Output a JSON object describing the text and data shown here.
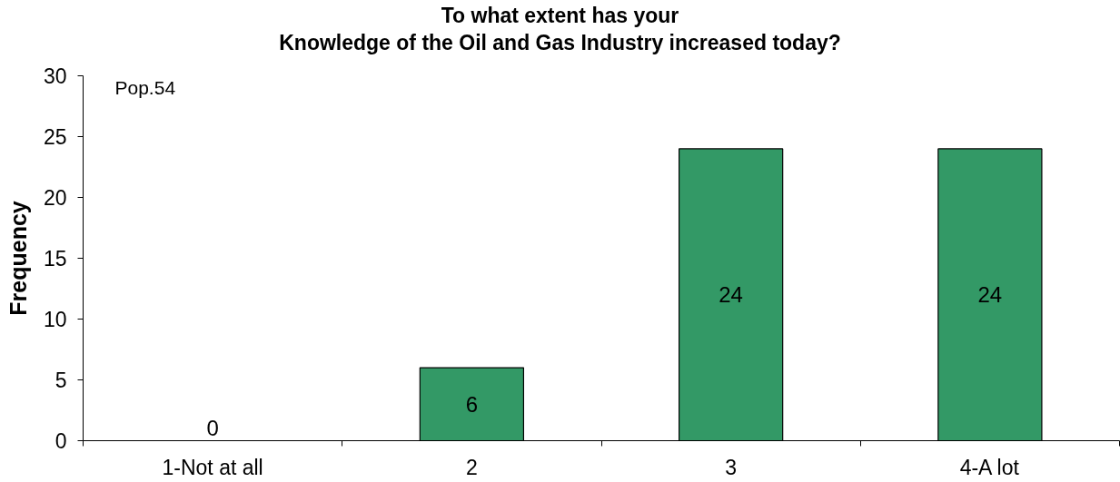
{
  "chart_data": {
    "type": "bar",
    "title": "To what extent has your\nKnowledge of the Oil and Gas Industry increased today?",
    "ylabel": "Frequency",
    "annotations": [
      "Pop.54"
    ],
    "categories": [
      "1-Not at all",
      "2",
      "3",
      "4-A lot"
    ],
    "values": [
      0,
      6,
      24,
      24
    ],
    "color": "#339966",
    "ylim": [
      0,
      30
    ],
    "yticks": [
      0,
      5,
      10,
      15,
      20,
      25,
      30
    ],
    "data_labels": true
  }
}
